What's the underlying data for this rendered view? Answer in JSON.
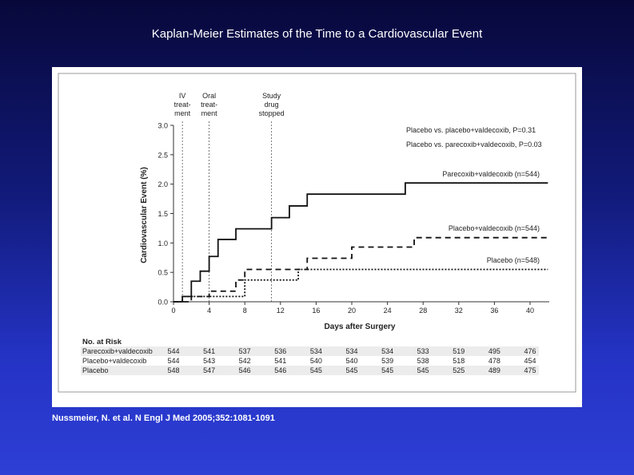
{
  "slide": {
    "title": "Kaplan-Meier Estimates of the Time to a Cardiovascular Event",
    "citation": "Nussmeier, N. et al. N Engl J Med 2005;352:1081-1091"
  },
  "chart_data": {
    "type": "line",
    "xlabel": "Days after Surgery",
    "ylabel": "Cardiovascular Event (%)",
    "xlim": [
      0,
      42
    ],
    "ylim": [
      0,
      3.0
    ],
    "x_ticks": [
      "0",
      "4",
      "8",
      "12",
      "16",
      "20",
      "24",
      "28",
      "32",
      "36",
      "40"
    ],
    "y_ticks": [
      "0.0",
      "0.5",
      "1.0",
      "1.5",
      "2.0",
      "2.5",
      "3.0"
    ],
    "phase_markers": [
      {
        "label": [
          "IV",
          "treat-",
          "ment"
        ],
        "x": 1
      },
      {
        "label": [
          "Oral",
          "treat-",
          "ment"
        ],
        "x": 4
      },
      {
        "label": [
          "Study",
          "drug",
          "stopped"
        ],
        "x": 11
      }
    ],
    "pvalues": [
      "Placebo vs. placebo+valdecoxib, P=0.31",
      "Placebo vs. parecoxib+valdecoxib, P=0.03"
    ],
    "series": [
      {
        "name": "Parecoxib+valdecoxib (n=544)",
        "style": "solid",
        "x": [
          0,
          1,
          2,
          3,
          4,
          5,
          7,
          11,
          13,
          15,
          26,
          42
        ],
        "y": [
          0,
          0.09,
          0.35,
          0.52,
          0.77,
          1.06,
          1.24,
          1.43,
          1.63,
          1.83,
          2.02,
          2.02
        ]
      },
      {
        "name": "Placebo+valdecoxib (n=544)",
        "style": "dashed",
        "x": [
          0,
          1,
          4,
          7,
          8,
          13,
          15,
          20,
          27,
          42
        ],
        "y": [
          0,
          0,
          0.18,
          0.37,
          0.55,
          0.55,
          0.74,
          0.93,
          1.09,
          1.09
        ],
        "x_stair": [
          0,
          2,
          4,
          7,
          8,
          13,
          15,
          20,
          27,
          42
        ],
        "y_stair": [
          0,
          0.09,
          0.18,
          0.37,
          0.55,
          0.55,
          0.74,
          0.93,
          1.09,
          1.09
        ]
      },
      {
        "name": "Placebo (n=548)",
        "style": "dotted",
        "x": [
          0,
          1,
          4,
          8,
          13,
          14,
          42
        ],
        "y": [
          0,
          0.09,
          0.09,
          0.37,
          0.37,
          0.55,
          0.55
        ]
      }
    ],
    "risk_table": {
      "title": "No. at Risk",
      "rows": [
        {
          "label": "Parecoxib+valdecoxib",
          "values": [
            "544",
            "541",
            "537",
            "536",
            "534",
            "534",
            "534",
            "533",
            "519",
            "495",
            "476"
          ]
        },
        {
          "label": "Placebo+valdecoxib",
          "values": [
            "544",
            "543",
            "542",
            "541",
            "540",
            "540",
            "539",
            "538",
            "518",
            "478",
            "454"
          ]
        },
        {
          "label": "Placebo",
          "values": [
            "548",
            "547",
            "546",
            "546",
            "545",
            "545",
            "545",
            "545",
            "525",
            "489",
            "475"
          ]
        }
      ]
    }
  }
}
